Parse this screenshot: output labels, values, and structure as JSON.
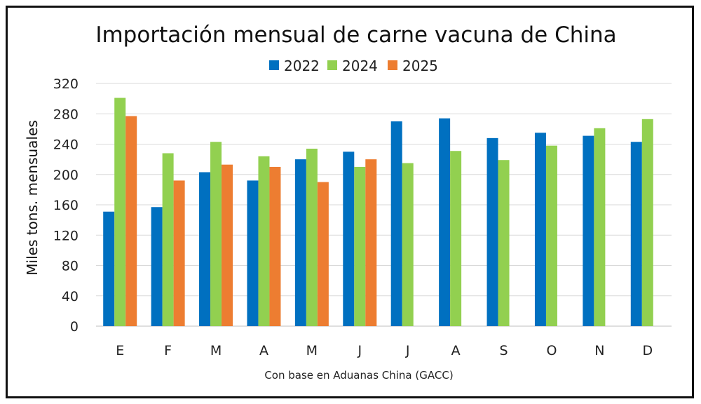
{
  "chart_data": {
    "type": "bar",
    "title": "Importación mensual de carne vacuna de China",
    "xlabel": "Con base en Aduanas China (GACC)",
    "ylabel": "Miles tons. mensuales",
    "categories": [
      "E",
      "F",
      "M",
      "A",
      "M",
      "J",
      "J",
      "A",
      "S",
      "O",
      "N",
      "D"
    ],
    "ylim": [
      0,
      320
    ],
    "yticks": [
      0,
      40,
      80,
      120,
      160,
      200,
      240,
      280,
      320
    ],
    "grid": true,
    "legend_position": "top",
    "series": [
      {
        "name": "2022",
        "color": "#0070C0",
        "values": [
          151,
          157,
          203,
          192,
          220,
          230,
          270,
          274,
          248,
          255,
          251,
          243
        ]
      },
      {
        "name": "2024",
        "color": "#92D050",
        "values": [
          301,
          228,
          243,
          224,
          234,
          210,
          215,
          231,
          219,
          238,
          261,
          273
        ]
      },
      {
        "name": "2025",
        "color": "#ED7D31",
        "values": [
          277,
          192,
          213,
          210,
          190,
          220,
          null,
          null,
          null,
          null,
          null,
          null
        ]
      }
    ]
  }
}
